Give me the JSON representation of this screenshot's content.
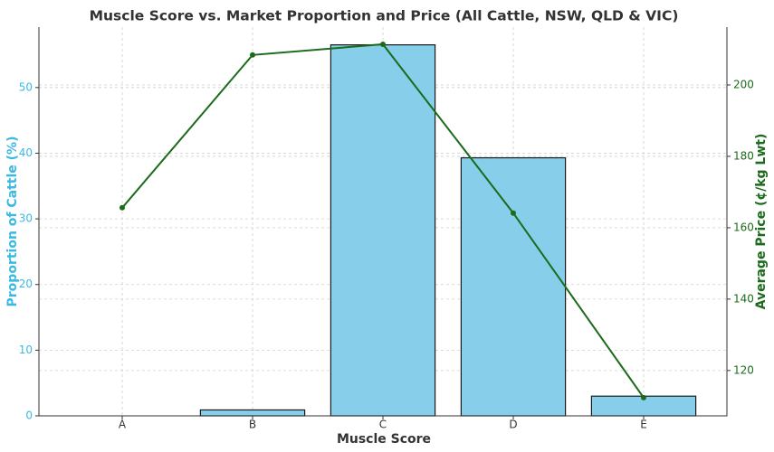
{
  "chart_data": {
    "type": "bar",
    "title": "Muscle Score vs. Market Proportion and Price (All Cattle, NSW, QLD & VIC)",
    "x_label": "Muscle Score",
    "y_label": "Proportion of Cattle (%)",
    "y2_label": "Average Price (¢/kg Lwt)",
    "categories": [
      "A",
      "B",
      "C",
      "D",
      "E"
    ],
    "series": [
      {
        "name": "Proportion of Cattle (%)",
        "type": "bar",
        "color": "#87ceeb",
        "values": [
          0,
          0.9,
          56.5,
          39.3,
          3.0
        ]
      },
      {
        "name": "Average Price (¢/kg Lwt)",
        "type": "line",
        "axis": "y2",
        "color": "#1c6b1c",
        "values": [
          165.6,
          208.4,
          211.4,
          164.1,
          112.4
        ]
      }
    ],
    "ylim": [
      0,
      59.2
    ],
    "yticks": [
      0,
      10,
      20,
      30,
      40,
      50
    ],
    "y2lim": [
      107.3,
      216.2
    ],
    "y2ticks": [
      120,
      140,
      160,
      180,
      200
    ],
    "y_label_color": "#3bb9e3",
    "y2_label_color": "#1c6b1c",
    "grid": true
  }
}
